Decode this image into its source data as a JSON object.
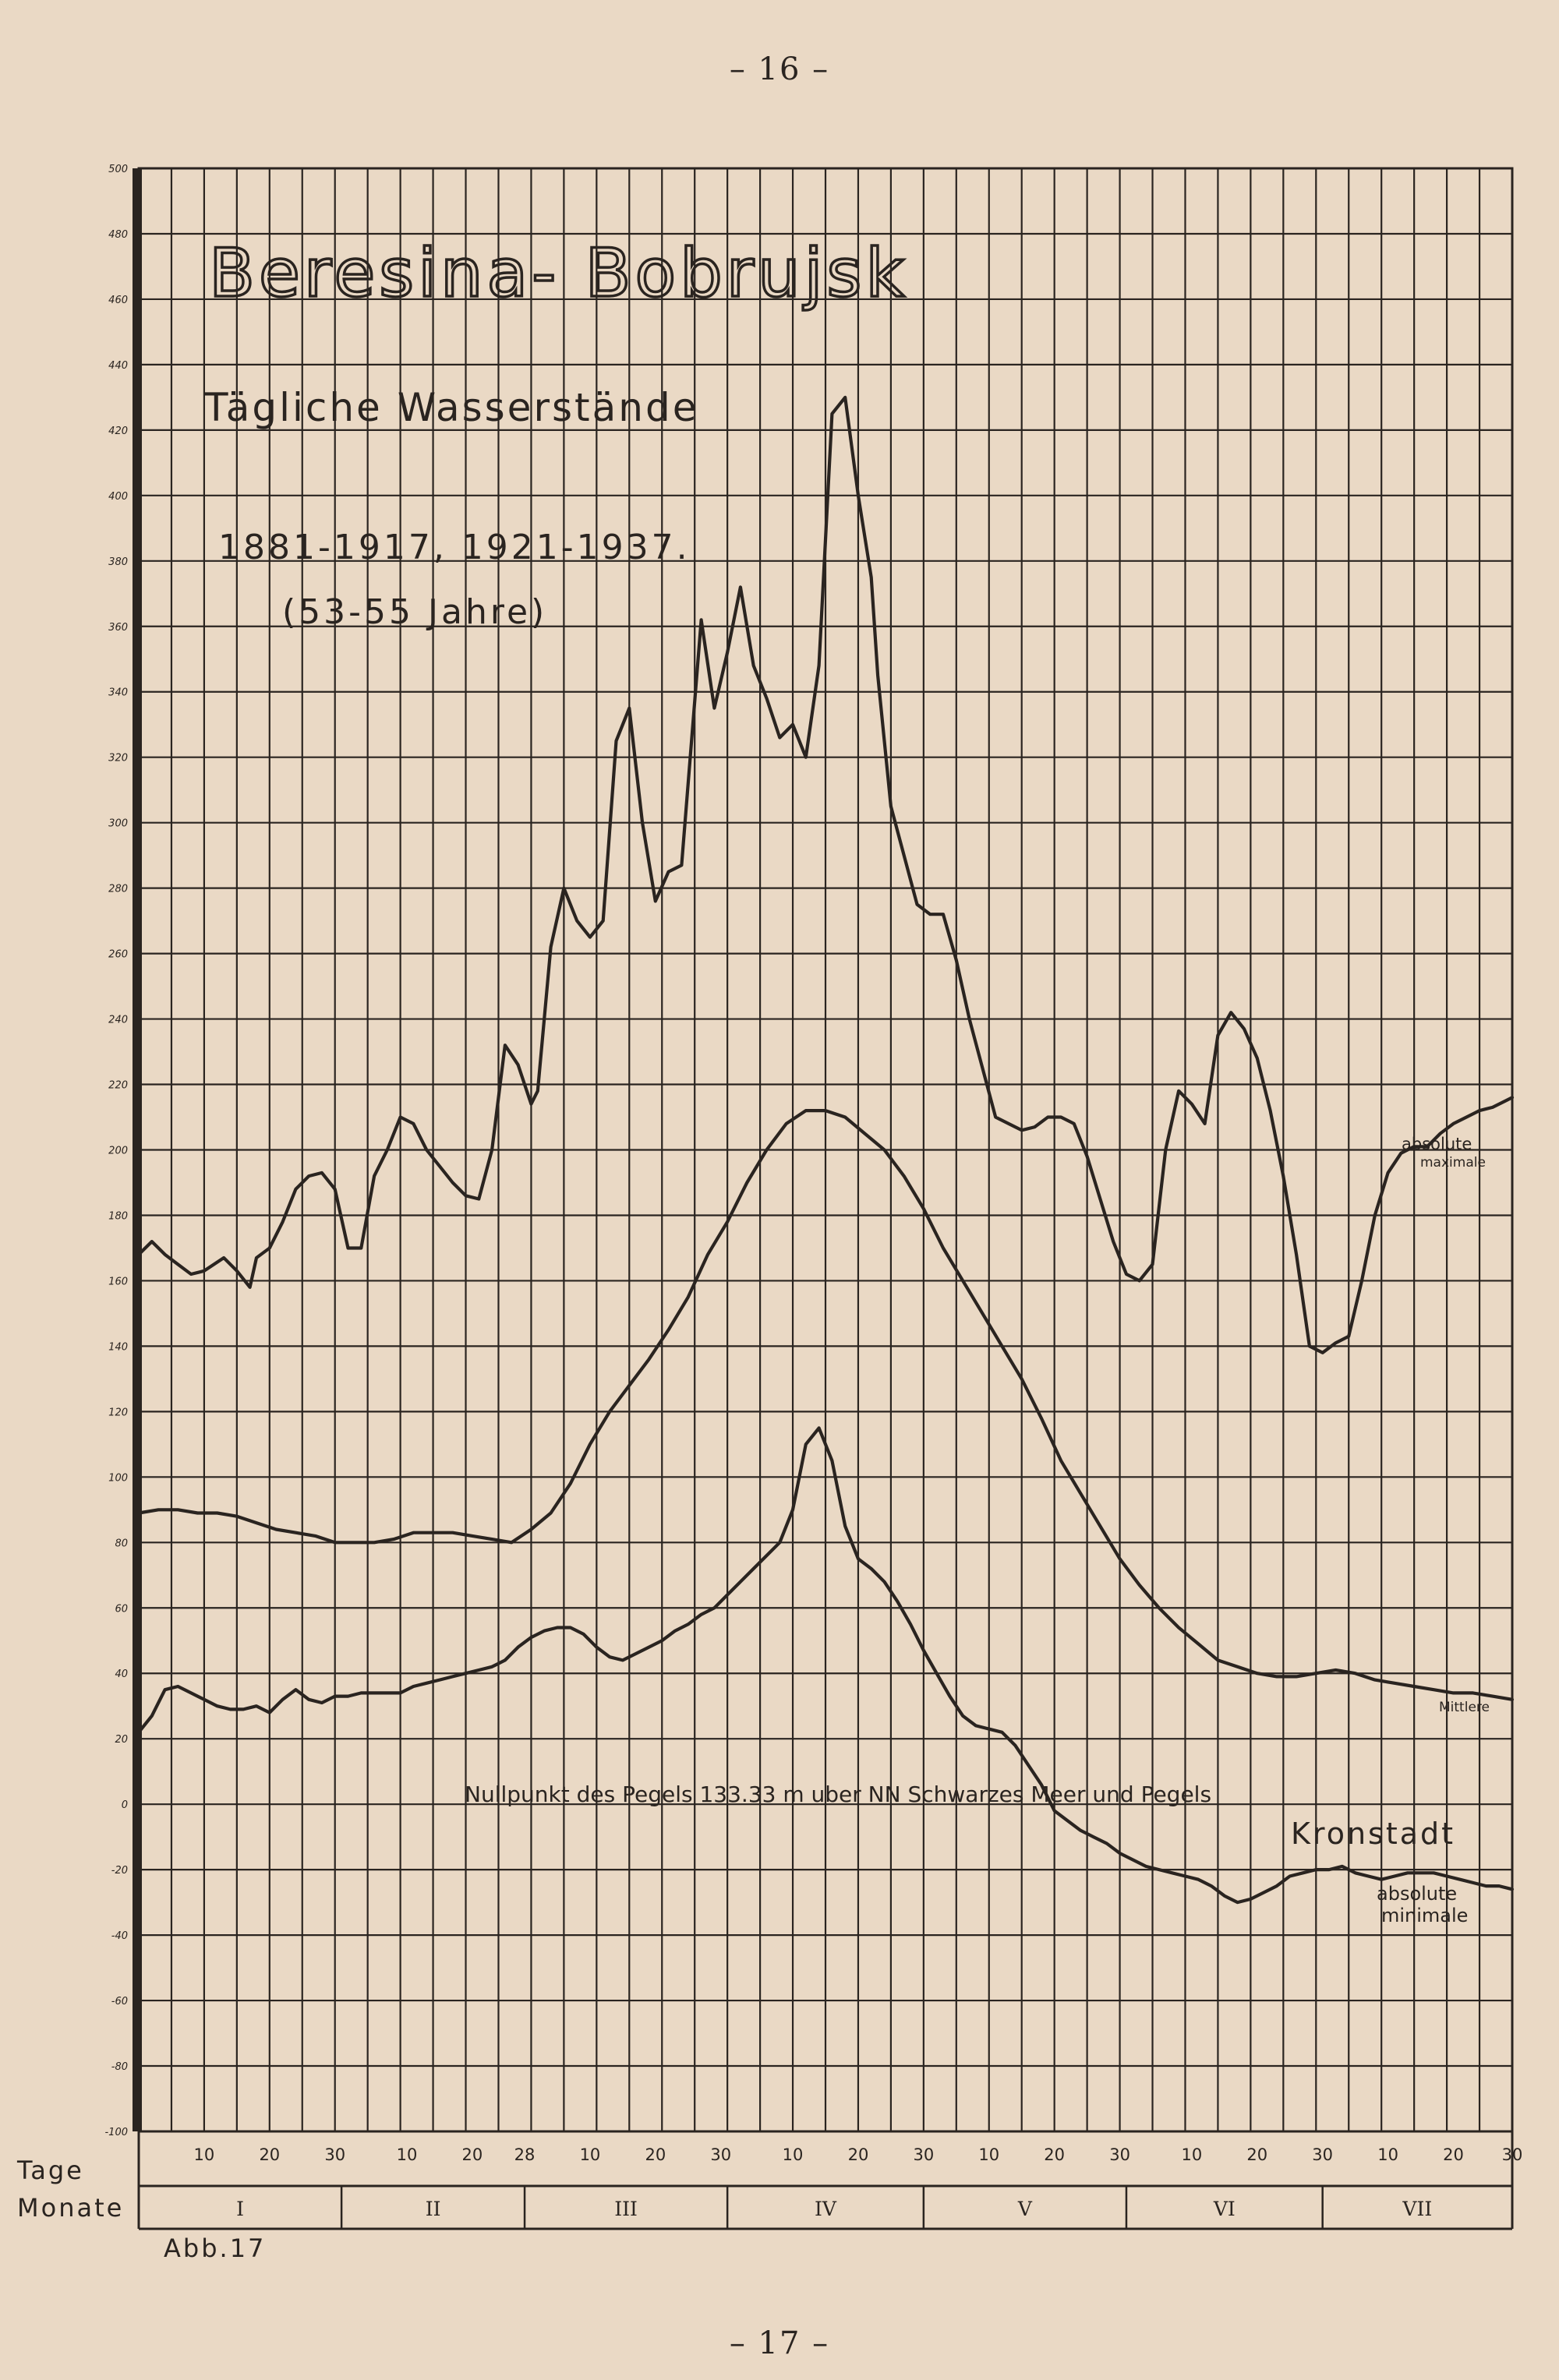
{
  "page": {
    "header": "– 16 –",
    "footer": "– 17 –",
    "figure_label": "Abb.17"
  },
  "colors": {
    "paper": "#ead9c5",
    "ink": "#2a2420"
  },
  "chart_data": {
    "type": "line",
    "title": "Beresina- Bobrujsk",
    "subtitle": "Tägliche Wasserstände",
    "period": "1881-1917, 1921-1937.",
    "period_note": "(53-55 Jahre)",
    "ylim": [
      -100,
      500
    ],
    "yticks": [
      -100,
      -80,
      -60,
      -40,
      -20,
      0,
      20,
      40,
      60,
      80,
      100,
      120,
      140,
      160,
      180,
      200,
      220,
      240,
      260,
      280,
      300,
      320,
      340,
      360,
      380,
      400,
      420,
      440,
      460,
      480,
      500
    ],
    "xlabel": "Tage",
    "month_label": "Monate",
    "xlim": [
      0,
      210
    ],
    "months": [
      {
        "label": "I",
        "start": 0,
        "end": 31
      },
      {
        "label": "II",
        "start": 31,
        "end": 59
      },
      {
        "label": "III",
        "start": 59,
        "end": 90
      },
      {
        "label": "IV",
        "start": 90,
        "end": 120
      },
      {
        "label": "V",
        "start": 120,
        "end": 151
      },
      {
        "label": "VI",
        "start": 151,
        "end": 181
      },
      {
        "label": "VII",
        "start": 181,
        "end": 210
      }
    ],
    "day_ticks": [
      {
        "x": 10,
        "label": "10"
      },
      {
        "x": 20,
        "label": "20"
      },
      {
        "x": 30,
        "label": "30"
      },
      {
        "x": 41,
        "label": "10"
      },
      {
        "x": 51,
        "label": "20"
      },
      {
        "x": 59,
        "label": "28"
      },
      {
        "x": 69,
        "label": "10"
      },
      {
        "x": 79,
        "label": "20"
      },
      {
        "x": 89,
        "label": "30"
      },
      {
        "x": 100,
        "label": "10"
      },
      {
        "x": 110,
        "label": "20"
      },
      {
        "x": 120,
        "label": "30"
      },
      {
        "x": 130,
        "label": "10"
      },
      {
        "x": 140,
        "label": "20"
      },
      {
        "x": 150,
        "label": "30"
      },
      {
        "x": 161,
        "label": "10"
      },
      {
        "x": 171,
        "label": "20"
      },
      {
        "x": 181,
        "label": "30"
      },
      {
        "x": 191,
        "label": "10"
      },
      {
        "x": 201,
        "label": "20"
      },
      {
        "x": 210,
        "label": "30"
      }
    ],
    "zero_line_note": "Nullpunkt des Pegels  133.33 m uber NN  Schwarzes Meer und Pegels",
    "zero_line_note2": "Kronstadt",
    "series": [
      {
        "name": "absolute maximale",
        "label_line1": "absolute",
        "label_line2": "maximale",
        "x": [
          0,
          2,
          4,
          6,
          8,
          10,
          13,
          15,
          17,
          18,
          20,
          22,
          24,
          26,
          28,
          30,
          32,
          34,
          36,
          38,
          40,
          42,
          44,
          46,
          48,
          50,
          52,
          54,
          56,
          58,
          60,
          61,
          63,
          65,
          67,
          69,
          71,
          73,
          75,
          77,
          79,
          81,
          83,
          84,
          86,
          88,
          90,
          92,
          94,
          96,
          98,
          100,
          102,
          104,
          106,
          108,
          110,
          112,
          113,
          115,
          117,
          119,
          121,
          123,
          125,
          127,
          129,
          131,
          133,
          135,
          137,
          139,
          141,
          143,
          145,
          147,
          149,
          151,
          153,
          155,
          157,
          159,
          161,
          163,
          165,
          167,
          169,
          171,
          173,
          175,
          177,
          179,
          181,
          183,
          185,
          187,
          189,
          191,
          193,
          195,
          197,
          199,
          201,
          203,
          205,
          207,
          209,
          210
        ],
        "values": [
          168,
          172,
          168,
          165,
          162,
          163,
          167,
          163,
          158,
          167,
          170,
          178,
          188,
          192,
          193,
          188,
          170,
          170,
          192,
          200,
          210,
          208,
          200,
          195,
          190,
          186,
          185,
          200,
          232,
          226,
          214,
          218,
          262,
          280,
          270,
          265,
          270,
          325,
          335,
          300,
          276,
          285,
          287,
          312,
          362,
          335,
          352,
          372,
          348,
          338,
          326,
          330,
          320,
          348,
          425,
          430,
          400,
          375,
          345,
          305,
          290,
          275,
          272,
          272,
          258,
          240,
          225,
          210,
          208,
          206,
          207,
          210,
          210,
          208,
          198,
          185,
          172,
          162,
          160,
          165,
          200,
          218,
          214,
          208,
          235,
          242,
          237,
          228,
          212,
          192,
          168,
          140,
          138,
          141,
          143,
          160,
          180,
          193,
          199,
          201,
          201,
          205,
          208,
          210,
          212,
          213,
          215,
          216
        ]
      },
      {
        "name": "Mittlere",
        "label_line1": "Mittlere",
        "x": [
          0,
          3,
          6,
          9,
          12,
          15,
          18,
          21,
          24,
          27,
          30,
          33,
          36,
          39,
          42,
          45,
          48,
          51,
          54,
          57,
          60,
          63,
          66,
          69,
          72,
          75,
          78,
          81,
          84,
          87,
          90,
          93,
          96,
          99,
          102,
          105,
          108,
          111,
          114,
          117,
          120,
          123,
          126,
          129,
          132,
          135,
          138,
          141,
          144,
          147,
          150,
          153,
          156,
          159,
          162,
          165,
          168,
          171,
          174,
          177,
          180,
          183,
          186,
          189,
          192,
          195,
          198,
          201,
          204,
          207,
          210
        ],
        "values": [
          89,
          90,
          90,
          89,
          89,
          88,
          86,
          84,
          83,
          82,
          80,
          80,
          80,
          81,
          83,
          83,
          83,
          82,
          81,
          80,
          84,
          89,
          98,
          110,
          120,
          128,
          136,
          145,
          155,
          168,
          178,
          190,
          200,
          208,
          212,
          212,
          210,
          205,
          200,
          192,
          182,
          170,
          160,
          150,
          140,
          130,
          118,
          105,
          95,
          85,
          75,
          67,
          60,
          54,
          49,
          44,
          42,
          40,
          39,
          39,
          40,
          41,
          40,
          38,
          37,
          36,
          35,
          34,
          34,
          33,
          32
        ]
      },
      {
        "name": "absolute minimale",
        "label_line1": "absolute",
        "label_line2": "minimale",
        "x": [
          0,
          2,
          4,
          6,
          8,
          10,
          12,
          14,
          16,
          18,
          20,
          22,
          24,
          26,
          28,
          30,
          32,
          34,
          36,
          38,
          40,
          42,
          44,
          46,
          48,
          50,
          52,
          54,
          56,
          58,
          60,
          62,
          64,
          66,
          68,
          70,
          72,
          74,
          76,
          78,
          80,
          82,
          84,
          86,
          88,
          90,
          92,
          94,
          96,
          98,
          100,
          102,
          104,
          106,
          108,
          110,
          112,
          114,
          116,
          118,
          120,
          122,
          124,
          126,
          128,
          130,
          132,
          134,
          136,
          138,
          140,
          142,
          144,
          146,
          148,
          150,
          152,
          154,
          156,
          158,
          160,
          162,
          164,
          166,
          168,
          170,
          172,
          174,
          176,
          178,
          180,
          182,
          184,
          186,
          188,
          190,
          192,
          194,
          196,
          198,
          200,
          202,
          204,
          206,
          208,
          210
        ],
        "values": [
          22,
          27,
          35,
          36,
          34,
          32,
          30,
          29,
          29,
          30,
          28,
          32,
          35,
          32,
          31,
          33,
          33,
          34,
          34,
          34,
          34,
          36,
          37,
          38,
          39,
          40,
          41,
          42,
          44,
          48,
          51,
          53,
          54,
          54,
          52,
          48,
          45,
          44,
          46,
          48,
          50,
          53,
          55,
          58,
          60,
          64,
          68,
          72,
          76,
          80,
          90,
          110,
          115,
          105,
          85,
          75,
          72,
          68,
          62,
          55,
          47,
          40,
          33,
          27,
          24,
          23,
          22,
          18,
          12,
          6,
          -2,
          -5,
          -8,
          -10,
          -12,
          -15,
          -17,
          -19,
          -20,
          -21,
          -22,
          -23,
          -25,
          -28,
          -30,
          -29,
          -27,
          -25,
          -22,
          -21,
          -20,
          -20,
          -19,
          -21,
          -22,
          -23,
          -22,
          -21,
          -21,
          -21,
          -22,
          -23,
          -24,
          -25,
          -25,
          -26
        ]
      }
    ]
  }
}
